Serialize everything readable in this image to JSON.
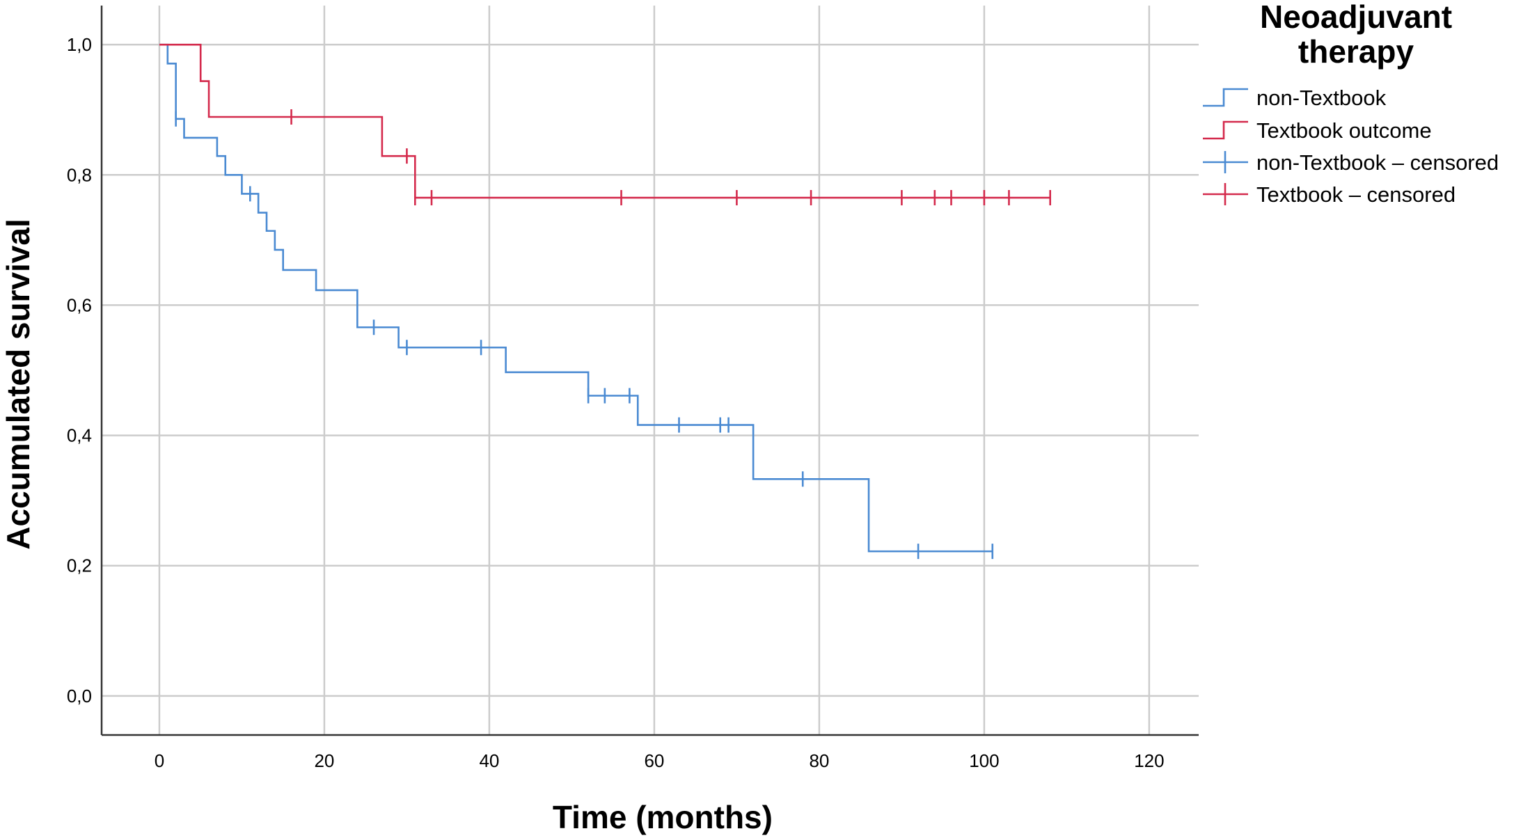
{
  "chart_data": {
    "type": "line",
    "subtype": "kaplan-meier-step",
    "xlabel": "Time (months)",
    "ylabel": "Accumulated survival",
    "xlim": [
      -7,
      126
    ],
    "ylim": [
      -0.06,
      1.06
    ],
    "x_ticks": [
      0,
      20,
      40,
      60,
      80,
      100,
      120
    ],
    "x_tick_labels": [
      "0",
      "20",
      "40",
      "60",
      "80",
      "100",
      "120"
    ],
    "y_ticks": [
      0.0,
      0.2,
      0.4,
      0.6,
      0.8,
      1.0
    ],
    "y_tick_labels": [
      "0,0",
      "0,2",
      "0,4",
      "0,6",
      "0,8",
      "1,0"
    ],
    "grid": true,
    "legend": {
      "title_lines": [
        "Neoadjuvant",
        "therapy"
      ],
      "placement": "right",
      "entries": [
        {
          "label": "non-Textbook",
          "kind": "step",
          "color": "#4a8ad2"
        },
        {
          "label": "Textbook outcome",
          "kind": "step",
          "color": "#d42a4c"
        },
        {
          "label": "non-Textbook – censored",
          "kind": "censor",
          "color": "#4a8ad2"
        },
        {
          "label": "Textbook – censored",
          "kind": "censor",
          "color": "#d42a4c"
        }
      ]
    },
    "series": [
      {
        "name": "non-Textbook",
        "color": "#4a8ad2",
        "steps": [
          [
            0,
            1.0
          ],
          [
            1,
            0.971
          ],
          [
            2,
            0.886
          ],
          [
            3,
            0.857
          ],
          [
            7,
            0.829
          ],
          [
            8,
            0.8
          ],
          [
            10,
            0.771
          ],
          [
            12,
            0.742
          ],
          [
            13,
            0.714
          ],
          [
            14,
            0.685
          ],
          [
            15,
            0.654
          ],
          [
            19,
            0.623
          ],
          [
            24,
            0.566
          ],
          [
            29,
            0.535
          ],
          [
            42,
            0.497
          ],
          [
            52,
            0.461
          ],
          [
            58,
            0.416
          ],
          [
            72,
            0.333
          ],
          [
            86,
            0.222
          ]
        ],
        "end_x": 101,
        "censored": [
          [
            2,
            0.886
          ],
          [
            11,
            0.771
          ],
          [
            26,
            0.566
          ],
          [
            30,
            0.535
          ],
          [
            39,
            0.535
          ],
          [
            52,
            0.461
          ],
          [
            54,
            0.461
          ],
          [
            57,
            0.461
          ],
          [
            63,
            0.416
          ],
          [
            68,
            0.416
          ],
          [
            69,
            0.416
          ],
          [
            78,
            0.333
          ],
          [
            92,
            0.222
          ],
          [
            101,
            0.222
          ]
        ]
      },
      {
        "name": "Textbook outcome",
        "color": "#d42a4c",
        "steps": [
          [
            0,
            1.0
          ],
          [
            5,
            0.944
          ],
          [
            6,
            0.889
          ],
          [
            27,
            0.829
          ],
          [
            31,
            0.765
          ]
        ],
        "end_x": 108,
        "censored": [
          [
            16,
            0.889
          ],
          [
            30,
            0.829
          ],
          [
            31,
            0.765
          ],
          [
            33,
            0.765
          ],
          [
            56,
            0.765
          ],
          [
            70,
            0.765
          ],
          [
            79,
            0.765
          ],
          [
            90,
            0.765
          ],
          [
            94,
            0.765
          ],
          [
            96,
            0.765
          ],
          [
            100,
            0.765
          ],
          [
            103,
            0.765
          ],
          [
            108,
            0.765
          ]
        ]
      }
    ]
  }
}
